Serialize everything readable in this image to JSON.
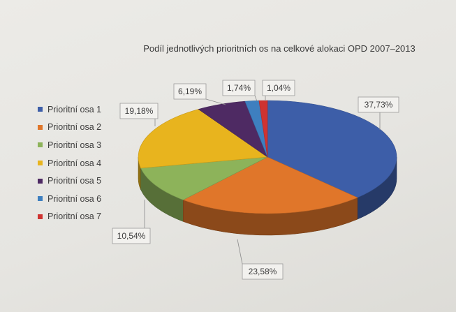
{
  "chart_data": {
    "type": "pie",
    "title": "Podíl jednotlivých prioritních os na celkové alokaci OPD 2007–2013",
    "categories": [
      "Prioritní osa 1",
      "Prioritní osa 2",
      "Prioritní osa 3",
      "Prioritní osa 4",
      "Prioritní osa 5",
      "Prioritní osa 6",
      "Prioritní osa 7"
    ],
    "values": [
      37.73,
      23.58,
      10.54,
      19.18,
      6.19,
      1.74,
      1.04
    ],
    "data_labels": [
      "37,73%",
      "23,58%",
      "10,54%",
      "19,18%",
      "6,19%",
      "1,74%",
      "1,04%"
    ],
    "colors": [
      "#3d5ea8",
      "#e0762a",
      "#8db35a",
      "#e8b41e",
      "#4e2a63",
      "#3e7fbf",
      "#cf3331"
    ],
    "legend_position": "left",
    "style": "3d"
  }
}
